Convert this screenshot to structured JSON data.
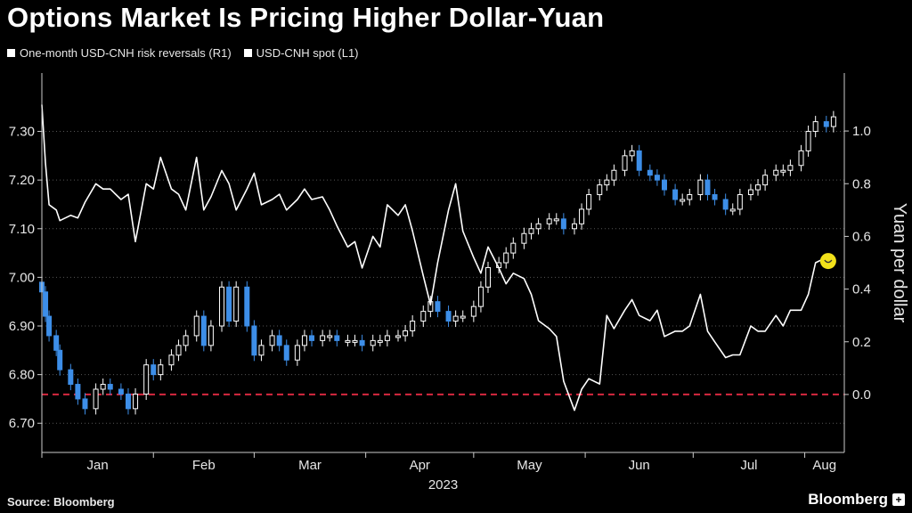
{
  "title": "Options Market Is Pricing Higher Dollar-Yuan",
  "source": "Source: Bloomberg",
  "brand": "Bloomberg",
  "brand_icon": "plus-icon",
  "colors": {
    "background": "#000000",
    "up_candle": "#ffffff",
    "down_candle": "#3d8ee8",
    "line": "#ffffff",
    "zero_line": "#d6283f",
    "highlight": "#f2e11a"
  },
  "chart_data": {
    "type": "line",
    "legend": [
      "One-month USD-CNH risk reversals (R1)",
      "USD-CNH spot (L1)"
    ],
    "legend_placement": "top-left",
    "x_ticks": [
      "Jan",
      "Feb",
      "Mar",
      "Apr",
      "May",
      "Jun",
      "Jul",
      "Aug"
    ],
    "x_group_label": "2023",
    "y_left": {
      "ticks": [
        "6.70",
        "6.80",
        "6.90",
        "7.00",
        "7.10",
        "7.20",
        "7.30"
      ],
      "range": [
        6.64,
        7.42
      ]
    },
    "y_right": {
      "label": "Yuan per dollar",
      "ticks": [
        "0.0",
        "0.2",
        "0.4",
        "0.6",
        "0.8",
        "1.0"
      ],
      "range": [
        -0.22,
        1.22
      ]
    },
    "grid": "horizontal-dotted",
    "reference_line": {
      "axis": "right",
      "value": 0.0,
      "style": "dashed"
    },
    "x": [
      "2023-01-01",
      "2023-01-02",
      "2023-01-03",
      "2023-01-05",
      "2023-01-06",
      "2023-01-09",
      "2023-01-11",
      "2023-01-13",
      "2023-01-16",
      "2023-01-18",
      "2023-01-20",
      "2023-01-23",
      "2023-01-25",
      "2023-01-27",
      "2023-01-30",
      "2023-02-01",
      "2023-02-03",
      "2023-02-06",
      "2023-02-08",
      "2023-02-10",
      "2023-02-13",
      "2023-02-15",
      "2023-02-17",
      "2023-02-20",
      "2023-02-22",
      "2023-02-24",
      "2023-02-27",
      "2023-03-01",
      "2023-03-03",
      "2023-03-06",
      "2023-03-08",
      "2023-03-10",
      "2023-03-13",
      "2023-03-15",
      "2023-03-17",
      "2023-03-20",
      "2023-03-22",
      "2023-03-24",
      "2023-03-27",
      "2023-03-29",
      "2023-03-31",
      "2023-04-03",
      "2023-04-05",
      "2023-04-07",
      "2023-04-10",
      "2023-04-12",
      "2023-04-14",
      "2023-04-17",
      "2023-04-19",
      "2023-04-21",
      "2023-04-24",
      "2023-04-26",
      "2023-04-28",
      "2023-05-01",
      "2023-05-03",
      "2023-05-05",
      "2023-05-08",
      "2023-05-10",
      "2023-05-12",
      "2023-05-15",
      "2023-05-17",
      "2023-05-19",
      "2023-05-22",
      "2023-05-24",
      "2023-05-26",
      "2023-05-29",
      "2023-05-31",
      "2023-06-02",
      "2023-06-05",
      "2023-06-07",
      "2023-06-09",
      "2023-06-12",
      "2023-06-14",
      "2023-06-16",
      "2023-06-19",
      "2023-06-21",
      "2023-06-23",
      "2023-06-26",
      "2023-06-28",
      "2023-06-30",
      "2023-07-03",
      "2023-07-05",
      "2023-07-07",
      "2023-07-10",
      "2023-07-12",
      "2023-07-14",
      "2023-07-17",
      "2023-07-19",
      "2023-07-21",
      "2023-07-24",
      "2023-07-26",
      "2023-07-28",
      "2023-07-31",
      "2023-08-02",
      "2023-08-04",
      "2023-08-07",
      "2023-08-09"
    ],
    "series": [
      {
        "name": "One-month USD-CNH risk reversals (R1)",
        "axis": "right",
        "values": [
          1.1,
          0.88,
          0.72,
          0.7,
          0.66,
          0.68,
          0.67,
          0.73,
          0.8,
          0.78,
          0.78,
          0.74,
          0.76,
          0.58,
          0.8,
          0.78,
          0.9,
          0.78,
          0.76,
          0.7,
          0.9,
          0.7,
          0.75,
          0.85,
          0.8,
          0.7,
          0.78,
          0.84,
          0.72,
          0.74,
          0.76,
          0.7,
          0.74,
          0.78,
          0.74,
          0.75,
          0.7,
          0.64,
          0.56,
          0.58,
          0.48,
          0.6,
          0.56,
          0.72,
          0.68,
          0.72,
          0.62,
          0.45,
          0.34,
          0.5,
          0.7,
          0.8,
          0.62,
          0.52,
          0.46,
          0.56,
          0.48,
          0.42,
          0.46,
          0.44,
          0.38,
          0.28,
          0.25,
          0.22,
          0.05,
          -0.06,
          0.02,
          0.06,
          0.04,
          0.3,
          0.25,
          0.32,
          0.36,
          0.3,
          0.28,
          0.32,
          0.22,
          0.24,
          0.24,
          0.26,
          0.38,
          0.24,
          0.2,
          0.14,
          0.15,
          0.15,
          0.26,
          0.24,
          0.24,
          0.3,
          0.26,
          0.32,
          0.32,
          0.38,
          0.5,
          0.52,
          0.52
        ],
        "highlight_last": true
      },
      {
        "name": "USD-CNH spot (L1)",
        "axis": "left",
        "type": "candlestick",
        "values": [
          6.97,
          6.92,
          6.88,
          6.85,
          6.81,
          6.78,
          6.75,
          6.73,
          6.77,
          6.78,
          6.77,
          6.76,
          6.73,
          6.76,
          6.82,
          6.8,
          6.82,
          6.84,
          6.86,
          6.88,
          6.92,
          6.86,
          6.9,
          6.98,
          6.91,
          6.98,
          6.9,
          6.84,
          6.86,
          6.88,
          6.86,
          6.83,
          6.86,
          6.88,
          6.87,
          6.88,
          6.88,
          6.87,
          6.87,
          6.87,
          6.86,
          6.87,
          6.87,
          6.88,
          6.88,
          6.89,
          6.91,
          6.93,
          6.95,
          6.93,
          6.91,
          6.92,
          6.92,
          6.94,
          6.98,
          7.02,
          7.03,
          7.05,
          7.07,
          7.09,
          7.1,
          7.11,
          7.12,
          7.12,
          7.1,
          7.11,
          7.14,
          7.17,
          7.19,
          7.2,
          7.22,
          7.25,
          7.26,
          7.22,
          7.21,
          7.2,
          7.18,
          7.16,
          7.16,
          7.17,
          7.2,
          7.17,
          7.16,
          7.14,
          7.14,
          7.17,
          7.18,
          7.19,
          7.21,
          7.22,
          7.22,
          7.23,
          7.26,
          7.3,
          7.32,
          7.31,
          7.33
        ]
      }
    ]
  }
}
